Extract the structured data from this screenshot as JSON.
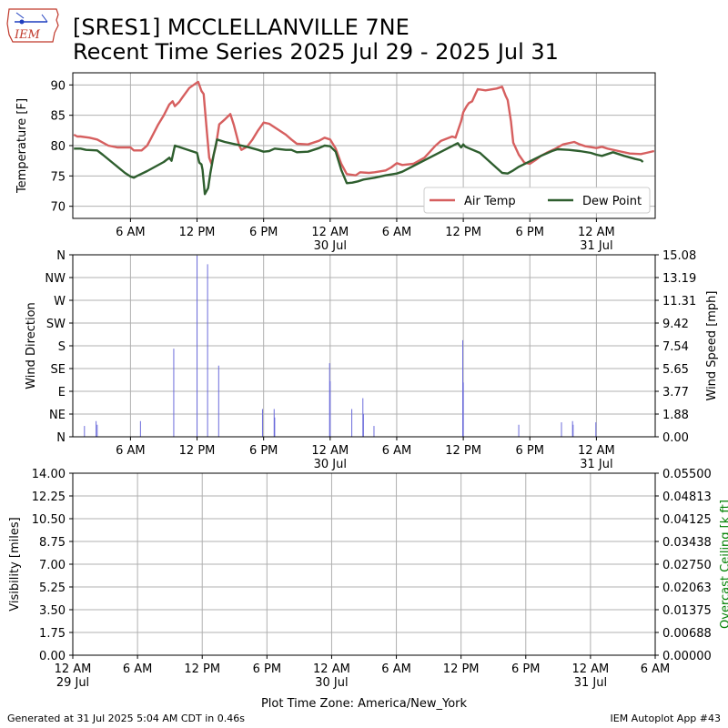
{
  "header": {
    "logo_text": "IEM",
    "title_line1": "[SRES1] MCCLELLANVILLE 7NE",
    "title_line2": "Recent Time Series 2025 Jul 29 - 2025 Jul 31"
  },
  "footer": {
    "generated": "Generated at 31 Jul 2025 5:04 AM CDT in 0.46s",
    "app": "IEM Autoplot App #43"
  },
  "colors": {
    "air_temp": "#d65f5f",
    "dew_point": "#2e5e2e",
    "wind": "#6b6bdb",
    "grid": "#b0b0b0",
    "ceiling_label": "#008000"
  },
  "chart_data": [
    {
      "type": "line",
      "ylabel": "Temperature [F]",
      "ylim": [
        68,
        92
      ],
      "yticks": [
        70,
        75,
        80,
        85,
        90
      ],
      "legend": "bottom-right",
      "grid": true,
      "x_units": "hours since 2025-07-29 00:00 America/New_York",
      "x_labels": [
        {
          "x": 6,
          "label": "6 AM",
          "sub": ""
        },
        {
          "x": 12,
          "label": "12 PM",
          "sub": ""
        },
        {
          "x": 18,
          "label": "6 PM",
          "sub": ""
        },
        {
          "x": 24,
          "label": "12 AM",
          "sub": "30 Jul"
        },
        {
          "x": 30,
          "label": "6 AM",
          "sub": ""
        },
        {
          "x": 36,
          "label": "12 PM",
          "sub": ""
        },
        {
          "x": 42,
          "label": "6 PM",
          "sub": ""
        },
        {
          "x": 48,
          "label": "12 AM",
          "sub": "31 Jul"
        }
      ],
      "xlim": [
        0.8,
        53.3
      ],
      "series": [
        {
          "name": "Air Temp",
          "points": [
            [
              0.9,
              81.8
            ],
            [
              1.2,
              81.5
            ],
            [
              1.5,
              81.5
            ],
            [
              2.3,
              81.3
            ],
            [
              3.0,
              81.0
            ],
            [
              4.0,
              80.0
            ],
            [
              4.8,
              79.7
            ],
            [
              6.0,
              79.7
            ],
            [
              6.3,
              79.2
            ],
            [
              7.0,
              79.2
            ],
            [
              7.5,
              80.0
            ],
            [
              7.8,
              81.0
            ],
            [
              8.5,
              83.5
            ],
            [
              9.0,
              85.0
            ],
            [
              9.5,
              86.8
            ],
            [
              9.8,
              87.3
            ],
            [
              10.0,
              86.5
            ],
            [
              10.4,
              87.2
            ],
            [
              10.7,
              88.0
            ],
            [
              11.3,
              89.5
            ],
            [
              12.0,
              90.4
            ],
            [
              12.1,
              90.5
            ],
            [
              12.4,
              89.0
            ],
            [
              12.6,
              88.5
            ],
            [
              12.9,
              82.0
            ],
            [
              13.1,
              78.0
            ],
            [
              13.3,
              77.0
            ],
            [
              13.7,
              80.0
            ],
            [
              14.0,
              83.5
            ],
            [
              14.5,
              84.3
            ],
            [
              15.0,
              85.2
            ],
            [
              15.3,
              83.5
            ],
            [
              15.8,
              80.0
            ],
            [
              16.0,
              79.3
            ],
            [
              16.5,
              79.8
            ],
            [
              17.0,
              81.0
            ],
            [
              17.5,
              82.5
            ],
            [
              18.0,
              83.8
            ],
            [
              18.5,
              83.6
            ],
            [
              19.0,
              83.0
            ],
            [
              19.5,
              82.4
            ],
            [
              20.0,
              81.8
            ],
            [
              20.5,
              81.0
            ],
            [
              21.0,
              80.3
            ],
            [
              22.0,
              80.2
            ],
            [
              23.0,
              80.8
            ],
            [
              23.5,
              81.3
            ],
            [
              24.0,
              81.0
            ],
            [
              24.5,
              79.5
            ],
            [
              25.0,
              77.0
            ],
            [
              25.5,
              75.3
            ],
            [
              26.3,
              75.1
            ],
            [
              26.7,
              75.6
            ],
            [
              27.5,
              75.5
            ],
            [
              28.0,
              75.6
            ],
            [
              29.0,
              75.9
            ],
            [
              29.5,
              76.4
            ],
            [
              30.0,
              77.1
            ],
            [
              30.5,
              76.8
            ],
            [
              31.5,
              77.0
            ],
            [
              32.5,
              78.0
            ],
            [
              33.0,
              79.0
            ],
            [
              33.5,
              80.0
            ],
            [
              34.0,
              80.8
            ],
            [
              35.0,
              81.5
            ],
            [
              35.3,
              81.3
            ],
            [
              35.8,
              84.0
            ],
            [
              36.0,
              85.5
            ],
            [
              36.3,
              86.5
            ],
            [
              36.5,
              87.0
            ],
            [
              36.8,
              87.3
            ],
            [
              37.1,
              88.5
            ],
            [
              37.3,
              89.3
            ],
            [
              38.0,
              89.1
            ],
            [
              39.0,
              89.4
            ],
            [
              39.5,
              89.7
            ],
            [
              39.8,
              88.3
            ],
            [
              40.0,
              87.5
            ],
            [
              40.3,
              84.0
            ],
            [
              40.5,
              80.5
            ],
            [
              41.0,
              78.5
            ],
            [
              41.5,
              77.2
            ],
            [
              42.0,
              77.0
            ],
            [
              42.5,
              77.6
            ],
            [
              43.0,
              78.3
            ],
            [
              43.5,
              78.8
            ],
            [
              44.2,
              79.4
            ],
            [
              45.0,
              80.2
            ],
            [
              46.0,
              80.6
            ],
            [
              46.5,
              80.2
            ],
            [
              47.0,
              79.9
            ],
            [
              48.0,
              79.6
            ],
            [
              48.5,
              79.8
            ],
            [
              49.0,
              79.5
            ],
            [
              50.0,
              79.1
            ],
            [
              51.0,
              78.7
            ],
            [
              52.0,
              78.6
            ],
            [
              52.5,
              78.8
            ],
            [
              53.2,
              79.1
            ]
          ]
        },
        {
          "name": "Dew Point",
          "points": [
            [
              0.9,
              79.5
            ],
            [
              1.5,
              79.5
            ],
            [
              2.0,
              79.3
            ],
            [
              3.0,
              79.2
            ],
            [
              3.5,
              78.5
            ],
            [
              4.5,
              77.0
            ],
            [
              5.5,
              75.5
            ],
            [
              6.0,
              74.9
            ],
            [
              6.3,
              74.7
            ],
            [
              6.6,
              75.0
            ],
            [
              7.5,
              75.8
            ],
            [
              9.0,
              77.3
            ],
            [
              9.5,
              78.0
            ],
            [
              9.7,
              77.5
            ],
            [
              10.0,
              80.0
            ],
            [
              12.0,
              78.8
            ],
            [
              12.2,
              77.2
            ],
            [
              12.4,
              76.9
            ],
            [
              12.5,
              76.0
            ],
            [
              12.7,
              72.0
            ],
            [
              13.0,
              73.0
            ],
            [
              13.2,
              75.5
            ],
            [
              13.5,
              78.5
            ],
            [
              13.8,
              81.0
            ],
            [
              14.5,
              80.6
            ],
            [
              15.5,
              80.2
            ],
            [
              16.5,
              79.8
            ],
            [
              17.5,
              79.3
            ],
            [
              18.0,
              79.0
            ],
            [
              18.5,
              79.1
            ],
            [
              19.0,
              79.5
            ],
            [
              20.0,
              79.3
            ],
            [
              20.5,
              79.3
            ],
            [
              21.0,
              78.9
            ],
            [
              22.0,
              79.0
            ],
            [
              23.0,
              79.6
            ],
            [
              23.5,
              80.0
            ],
            [
              24.0,
              79.9
            ],
            [
              24.5,
              79.0
            ],
            [
              25.0,
              76.0
            ],
            [
              25.5,
              73.8
            ],
            [
              26.0,
              73.9
            ],
            [
              26.5,
              74.1
            ],
            [
              27.0,
              74.4
            ],
            [
              28.0,
              74.7
            ],
            [
              29.0,
              75.1
            ],
            [
              30.0,
              75.4
            ],
            [
              30.5,
              75.7
            ],
            [
              35.5,
              80.4
            ],
            [
              35.8,
              79.7
            ],
            [
              36.0,
              80.2
            ],
            [
              36.2,
              79.8
            ],
            [
              37.5,
              78.8
            ],
            [
              39.5,
              75.5
            ],
            [
              40.0,
              75.4
            ],
            [
              40.5,
              75.9
            ],
            [
              41.0,
              76.5
            ],
            [
              42.0,
              77.4
            ],
            [
              43.0,
              78.3
            ],
            [
              44.0,
              79.1
            ],
            [
              44.5,
              79.4
            ],
            [
              45.5,
              79.3
            ],
            [
              46.5,
              79.1
            ],
            [
              47.5,
              78.8
            ],
            [
              48.0,
              78.5
            ],
            [
              48.5,
              78.3
            ],
            [
              49.5,
              78.9
            ],
            [
              50.5,
              78.3
            ],
            [
              51.5,
              77.8
            ],
            [
              52.0,
              77.6
            ],
            [
              52.2,
              77.3
            ]
          ]
        }
      ]
    },
    {
      "type": "bar",
      "ylabel": "Wind Direction",
      "y2label": "Wind Speed [mph]",
      "direction_ticks": [
        "N",
        "NE",
        "E",
        "SE",
        "S",
        "SW",
        "W",
        "NW",
        "N"
      ],
      "ylim": [
        0,
        15.08
      ],
      "y2ticks": [
        "0.00",
        "1.88",
        "3.77",
        "5.65",
        "7.54",
        "9.42",
        "11.31",
        "13.19",
        "15.08"
      ],
      "x_labels": [
        {
          "x": 6,
          "label": "6 AM",
          "sub": ""
        },
        {
          "x": 12,
          "label": "12 PM",
          "sub": ""
        },
        {
          "x": 18,
          "label": "6 PM",
          "sub": ""
        },
        {
          "x": 24,
          "label": "12 AM",
          "sub": "30 Jul"
        },
        {
          "x": 30,
          "label": "6 AM",
          "sub": ""
        },
        {
          "x": 36,
          "label": "12 PM",
          "sub": ""
        },
        {
          "x": 42,
          "label": "6 PM",
          "sub": ""
        },
        {
          "x": 48,
          "label": "12 AM",
          "sub": "31 Jul"
        }
      ],
      "xlim": [
        0.8,
        53.3
      ],
      "grid": true,
      "series": [
        {
          "name": "Wind Speed",
          "points": [
            [
              1.85,
              0.9
            ],
            [
              2.9,
              1.3
            ],
            [
              3.0,
              1.0
            ],
            [
              6.9,
              1.3
            ],
            [
              9.9,
              7.3
            ],
            [
              12.0,
              15.0
            ],
            [
              12.95,
              14.3
            ],
            [
              13.95,
              5.9
            ],
            [
              17.9,
              2.3
            ],
            [
              18.95,
              2.3
            ],
            [
              19.0,
              1.6
            ],
            [
              23.95,
              6.1
            ],
            [
              24.0,
              4.6
            ],
            [
              25.95,
              2.3
            ],
            [
              26.95,
              3.2
            ],
            [
              27.0,
              1.9
            ],
            [
              27.95,
              0.9
            ],
            [
              35.95,
              8.0
            ],
            [
              36.0,
              4.5
            ],
            [
              41.0,
              1.0
            ],
            [
              44.85,
              1.2
            ],
            [
              45.85,
              1.3
            ],
            [
              45.9,
              1.0
            ],
            [
              47.95,
              1.2
            ]
          ]
        }
      ]
    },
    {
      "type": "line",
      "ylabel": "Visibility [miles]",
      "y2label": "Overcast Ceiling [k ft]",
      "ylim": [
        0,
        14
      ],
      "yticks": [
        "0.00",
        "1.75",
        "3.50",
        "5.25",
        "7.00",
        "8.75",
        "10.50",
        "12.25",
        "14.00"
      ],
      "y2lim": [
        0,
        0.055
      ],
      "y2ticks": [
        "0.00000",
        "0.00688",
        "0.01375",
        "0.02063",
        "0.02750",
        "0.03438",
        "0.04125",
        "0.04813",
        "0.05500"
      ],
      "xlim": [
        0,
        54
      ],
      "x_labels": [
        {
          "x": 0,
          "label": "12 AM",
          "sub": "29 Jul"
        },
        {
          "x": 6,
          "label": "6 AM",
          "sub": ""
        },
        {
          "x": 12,
          "label": "12 PM",
          "sub": ""
        },
        {
          "x": 18,
          "label": "6 PM",
          "sub": ""
        },
        {
          "x": 24,
          "label": "12 AM",
          "sub": "30 Jul"
        },
        {
          "x": 30,
          "label": "6 AM",
          "sub": ""
        },
        {
          "x": 36,
          "label": "12 PM",
          "sub": ""
        },
        {
          "x": 42,
          "label": "6 PM",
          "sub": ""
        },
        {
          "x": 48,
          "label": "12 AM",
          "sub": "31 Jul"
        },
        {
          "x": 54,
          "label": "6 AM",
          "sub": ""
        }
      ],
      "xlabel": "Plot Time Zone: America/New_York",
      "grid": true,
      "series": []
    }
  ]
}
